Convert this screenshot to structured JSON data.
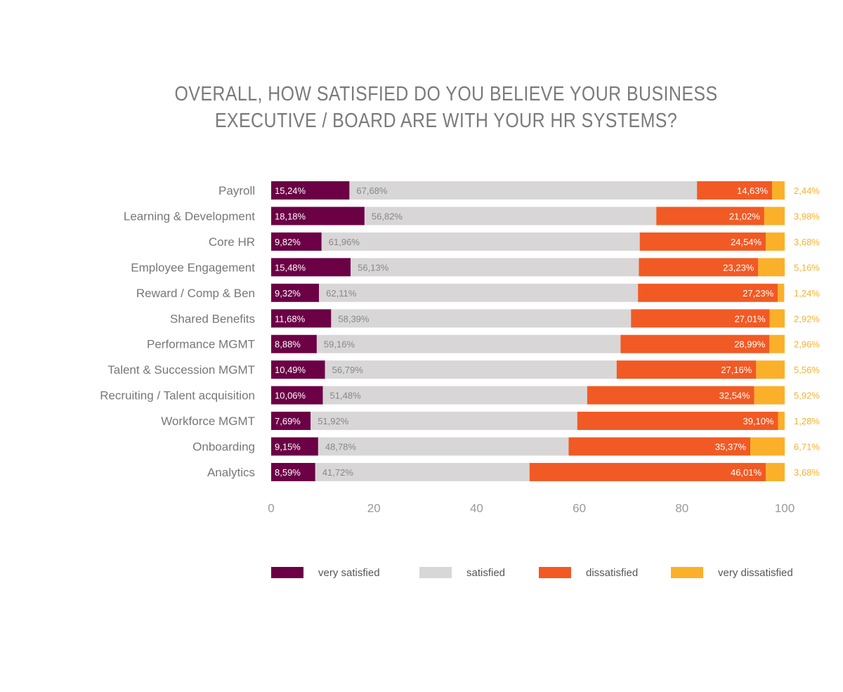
{
  "chart_data": {
    "type": "bar",
    "orientation": "horizontal",
    "stacked": true,
    "title": [
      "OVERALL, HOW SATISFIED DO YOU BELIEVE YOUR BUSINESS",
      "EXECUTIVE / BOARD ARE WITH YOUR HR SYSTEMS?"
    ],
    "categories": [
      "Payroll",
      "Learning & Development",
      "Core HR",
      "Employee Engagement",
      "Reward / Comp & Ben",
      "Shared Benefits",
      "Performance MGMT",
      "Talent & Succession MGMT",
      "Recruiting / Talent acquisition",
      "Workforce MGMT",
      "Onboarding",
      "Analytics"
    ],
    "series": [
      {
        "name": "very satisfied",
        "color": "#6b0045",
        "values": [
          15.24,
          18.18,
          9.82,
          15.48,
          9.32,
          11.68,
          8.88,
          10.49,
          10.06,
          7.69,
          9.15,
          8.59
        ],
        "labels": [
          "15,24%",
          "18,18%",
          "9,82%",
          "15,48%",
          "9,32%",
          "11,68%",
          "8,88%",
          "10,49%",
          "10,06%",
          "7,69%",
          "9,15%",
          "8,59%"
        ]
      },
      {
        "name": "satisfied",
        "color": "#d8d6d7",
        "values": [
          67.68,
          56.82,
          61.96,
          56.13,
          62.11,
          58.39,
          59.16,
          56.79,
          51.48,
          51.92,
          48.78,
          41.72
        ],
        "labels": [
          "67,68%",
          "56,82%",
          "61,96%",
          "56,13%",
          "62,11%",
          "58,39%",
          "59,16%",
          "56,79%",
          "51,48%",
          "51,92%",
          "48,78%",
          "41,72%"
        ]
      },
      {
        "name": "dissatisfied",
        "color": "#f15a24",
        "values": [
          14.63,
          21.02,
          24.54,
          23.23,
          27.23,
          27.01,
          28.99,
          27.16,
          32.54,
          39.1,
          35.37,
          46.01
        ],
        "labels": [
          "14,63%",
          "21,02%",
          "24,54%",
          "23,23%",
          "27,23%",
          "27,01%",
          "28,99%",
          "27,16%",
          "32,54%",
          "39,10%",
          "35,37%",
          "46,01%"
        ]
      },
      {
        "name": "very dissatisfied",
        "color": "#fbb02a",
        "values": [
          2.44,
          3.98,
          3.68,
          5.16,
          1.24,
          2.92,
          2.96,
          5.56,
          5.92,
          1.28,
          6.71,
          3.68
        ],
        "labels": [
          "2,44%",
          "3,98%",
          "3,68%",
          "5,16%",
          "1,24%",
          "2,92%",
          "2,96%",
          "5,56%",
          "5,92%",
          "1,28%",
          "6,71%",
          "3,68%"
        ]
      }
    ],
    "xlim": [
      0,
      100
    ],
    "xticks": [
      "0",
      "20",
      "40",
      "60",
      "80",
      "100"
    ],
    "grid": false,
    "legend": "bottom"
  }
}
